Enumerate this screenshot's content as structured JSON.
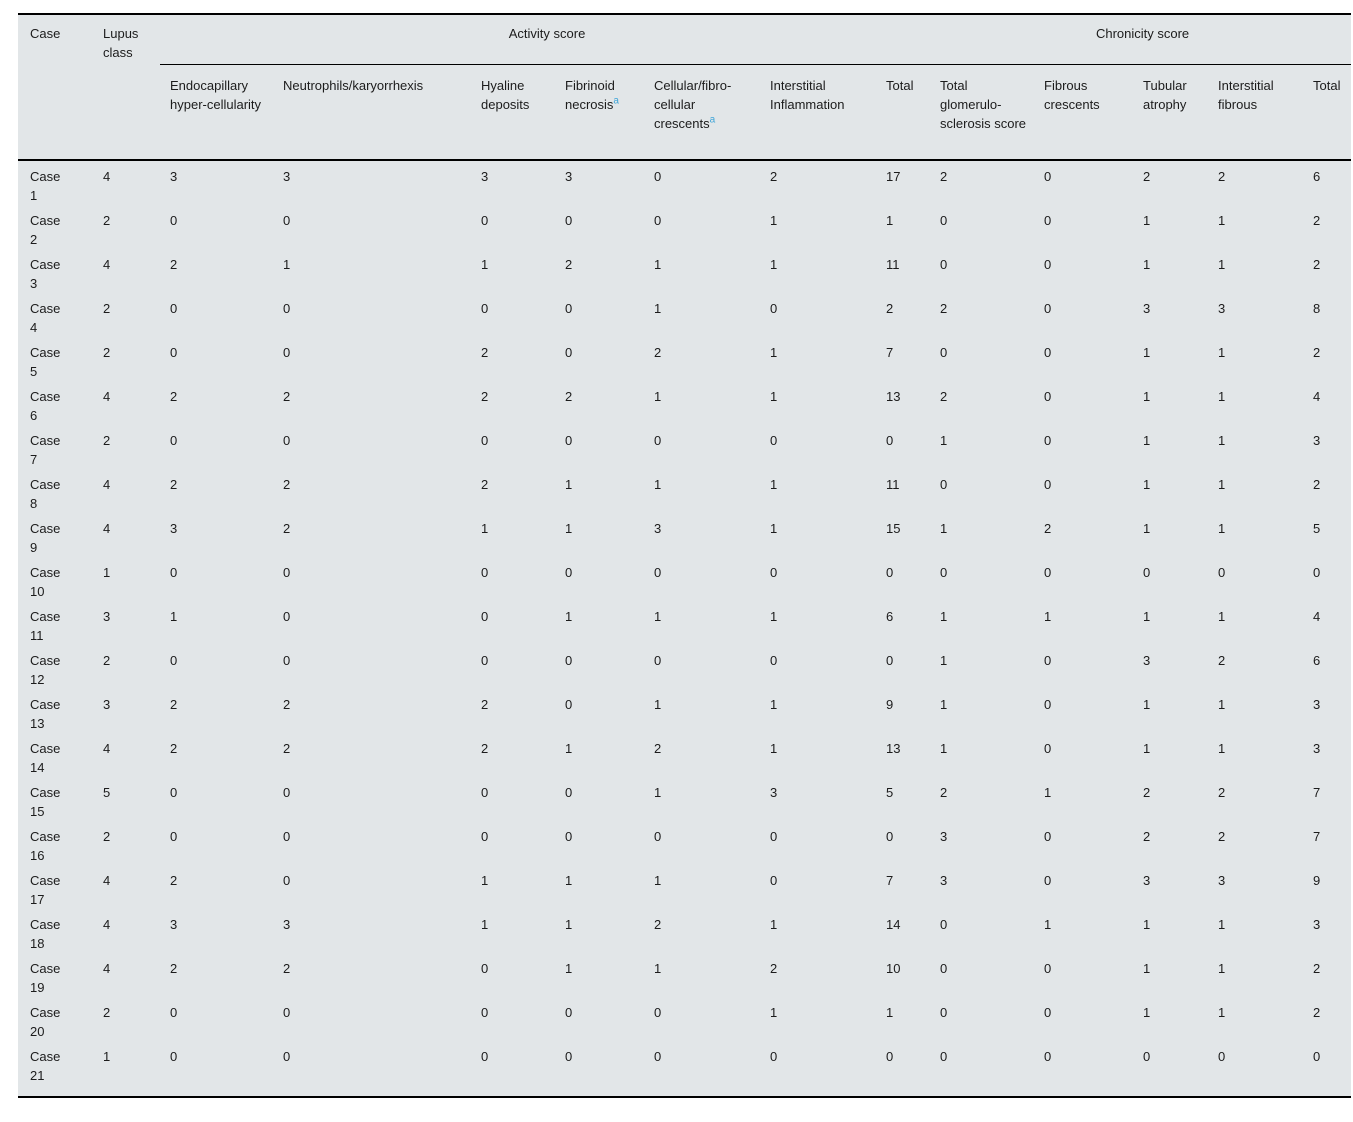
{
  "table": {
    "header": {
      "case": "Case",
      "lupus_class": "Lupus class",
      "activity_group": "Activity score",
      "chronicity_group": "Chronicity score",
      "activity_cols": [
        {
          "label": "Endocapillary hyper-cellularity"
        },
        {
          "label": "Neutrophils/karyorrhexis"
        },
        {
          "label": "Hyaline deposits"
        },
        {
          "label": "Fibrinoid necrosis",
          "sup": "a"
        },
        {
          "label": "Cellular/fibro-cellular crescents",
          "sup": "a"
        },
        {
          "label": "Interstitial Inflammation"
        },
        {
          "label": "Total"
        },
        {
          "label": "Total glomerulo-sclerosis score"
        },
        {
          "label": "Fibrous crescents"
        },
        {
          "label": "Tubular atrophy"
        },
        {
          "label": "Interstitial fibrous"
        },
        {
          "label": "Total"
        }
      ]
    },
    "rows": [
      {
        "case": "Case 1",
        "lupus_class": "4",
        "activity": [
          "3",
          "3",
          "3",
          "3",
          "0",
          "2",
          "17"
        ],
        "chronicity": [
          "2",
          "0",
          "2",
          "2",
          "6"
        ]
      },
      {
        "case": "Case 2",
        "lupus_class": "2",
        "activity": [
          "0",
          "0",
          "0",
          "0",
          "0",
          "1",
          "1"
        ],
        "chronicity": [
          "0",
          "0",
          "1",
          "1",
          "2"
        ]
      },
      {
        "case": "Case 3",
        "lupus_class": "4",
        "activity": [
          "2",
          "1",
          "1",
          "2",
          "1",
          "1",
          "11"
        ],
        "chronicity": [
          "0",
          "0",
          "1",
          "1",
          "2"
        ]
      },
      {
        "case": "Case 4",
        "lupus_class": "2",
        "activity": [
          "0",
          "0",
          "0",
          "0",
          "1",
          "0",
          "2"
        ],
        "chronicity": [
          "2",
          "0",
          "3",
          "3",
          "8"
        ]
      },
      {
        "case": "Case 5",
        "lupus_class": "2",
        "activity": [
          "0",
          "0",
          "2",
          "0",
          "2",
          "1",
          "7"
        ],
        "chronicity": [
          "0",
          "0",
          "1",
          "1",
          "2"
        ]
      },
      {
        "case": "Case 6",
        "lupus_class": "4",
        "activity": [
          "2",
          "2",
          "2",
          "2",
          "1",
          "1",
          "13"
        ],
        "chronicity": [
          "2",
          "0",
          "1",
          "1",
          "4"
        ]
      },
      {
        "case": "Case 7",
        "lupus_class": "2",
        "activity": [
          "0",
          "0",
          "0",
          "0",
          "0",
          "0",
          "0"
        ],
        "chronicity": [
          "1",
          "0",
          "1",
          "1",
          "3"
        ]
      },
      {
        "case": "Case 8",
        "lupus_class": "4",
        "activity": [
          "2",
          "2",
          "2",
          "1",
          "1",
          "1",
          "11"
        ],
        "chronicity": [
          "0",
          "0",
          "1",
          "1",
          "2"
        ]
      },
      {
        "case": "Case 9",
        "lupus_class": "4",
        "activity": [
          "3",
          "2",
          "1",
          "1",
          "3",
          "1",
          "15"
        ],
        "chronicity": [
          "1",
          "2",
          "1",
          "1",
          "5"
        ]
      },
      {
        "case": "Case 10",
        "lupus_class": "1",
        "activity": [
          "0",
          "0",
          "0",
          "0",
          "0",
          "0",
          "0"
        ],
        "chronicity": [
          "0",
          "0",
          "0",
          "0",
          "0"
        ]
      },
      {
        "case": "Case 11",
        "lupus_class": "3",
        "activity": [
          "1",
          "0",
          "0",
          "1",
          "1",
          "1",
          "6"
        ],
        "chronicity": [
          "1",
          "1",
          "1",
          "1",
          "4"
        ]
      },
      {
        "case": "Case 12",
        "lupus_class": "2",
        "activity": [
          "0",
          "0",
          "0",
          "0",
          "0",
          "0",
          "0"
        ],
        "chronicity": [
          "1",
          "0",
          "3",
          "2",
          "6"
        ]
      },
      {
        "case": "Case 13",
        "lupus_class": "3",
        "activity": [
          "2",
          "2",
          "2",
          "0",
          "1",
          "1",
          "9"
        ],
        "chronicity": [
          "1",
          "0",
          "1",
          "1",
          "3"
        ]
      },
      {
        "case": "Case 14",
        "lupus_class": "4",
        "activity": [
          "2",
          "2",
          "2",
          "1",
          "2",
          "1",
          "13"
        ],
        "chronicity": [
          "1",
          "0",
          "1",
          "1",
          "3"
        ]
      },
      {
        "case": "Case 15",
        "lupus_class": "5",
        "activity": [
          "0",
          "0",
          "0",
          "0",
          "1",
          "3",
          "5"
        ],
        "chronicity": [
          "2",
          "1",
          "2",
          "2",
          "7"
        ]
      },
      {
        "case": "Case 16",
        "lupus_class": "2",
        "activity": [
          "0",
          "0",
          "0",
          "0",
          "0",
          "0",
          "0"
        ],
        "chronicity": [
          "3",
          "0",
          "2",
          "2",
          "7"
        ]
      },
      {
        "case": "Case 17",
        "lupus_class": "4",
        "activity": [
          "2",
          "0",
          "1",
          "1",
          "1",
          "0",
          "7"
        ],
        "chronicity": [
          "3",
          "0",
          "3",
          "3",
          "9"
        ]
      },
      {
        "case": "Case 18",
        "lupus_class": "4",
        "activity": [
          "3",
          "3",
          "1",
          "1",
          "2",
          "1",
          "14"
        ],
        "chronicity": [
          "0",
          "1",
          "1",
          "1",
          "3"
        ]
      },
      {
        "case": "Case 19",
        "lupus_class": "4",
        "activity": [
          "2",
          "2",
          "0",
          "1",
          "1",
          "2",
          "10"
        ],
        "chronicity": [
          "0",
          "0",
          "1",
          "1",
          "2"
        ]
      },
      {
        "case": "Case 20",
        "lupus_class": "2",
        "activity": [
          "0",
          "0",
          "0",
          "0",
          "0",
          "1",
          "1"
        ],
        "chronicity": [
          "0",
          "0",
          "1",
          "1",
          "2"
        ]
      },
      {
        "case": "Case 21",
        "lupus_class": "1",
        "activity": [
          "0",
          "0",
          "0",
          "0",
          "0",
          "0",
          "0"
        ],
        "chronicity": [
          "0",
          "0",
          "0",
          "0",
          "0"
        ]
      }
    ]
  },
  "colors": {
    "table_background": "#e2e6e8",
    "border": "#000000",
    "text": "#1c1c1c",
    "footnote_marker": "#3fa5d8"
  }
}
